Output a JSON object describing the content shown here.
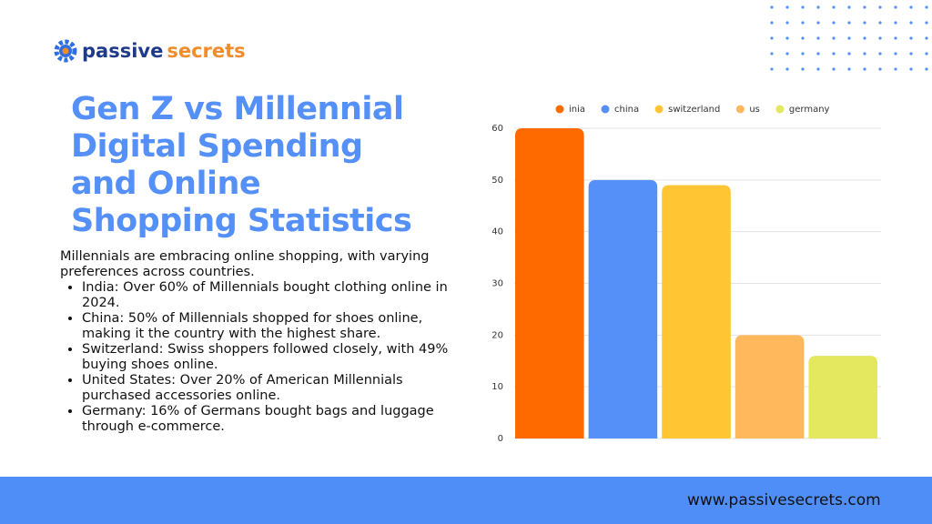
{
  "logo": {
    "part1": "passive",
    "part2": "secrets"
  },
  "title_lines": [
    "Gen Z vs Millennial",
    "Digital Spending",
    "and Online",
    "Shopping Statistics"
  ],
  "intro": "Millennials are embracing online shopping, with varying preferences across countries.",
  "bullets": [
    "India: Over 60% of Millennials bought clothing online in 2024.",
    "China: 50% of Millennials shopped for shoes online, making it the country with the highest share.",
    "Switzerland: Swiss shoppers followed closely, with 49% buying shoes online.",
    "United States: Over 20% of American Millennials purchased accessories online.",
    "Germany: 16% of Germans bought bags and luggage through e-commerce."
  ],
  "footer_url": "www.passivesecrets.com",
  "chart_data": {
    "type": "bar",
    "categories": [
      null
    ],
    "series": [
      {
        "name": "inia",
        "color": "#ff6a00",
        "values": [
          60
        ]
      },
      {
        "name": "china",
        "color": "#5590f8",
        "values": [
          50
        ]
      },
      {
        "name": "switzerland",
        "color": "#ffc533",
        "values": [
          49
        ]
      },
      {
        "name": "us",
        "color": "#ffb95c",
        "values": [
          20
        ]
      },
      {
        "name": "germany",
        "color": "#e4e85f",
        "values": [
          16
        ]
      }
    ],
    "ylim": [
      0,
      60
    ],
    "yticks": [
      0,
      10,
      20,
      30,
      40,
      50,
      60
    ],
    "grid": true,
    "legend": "top"
  }
}
